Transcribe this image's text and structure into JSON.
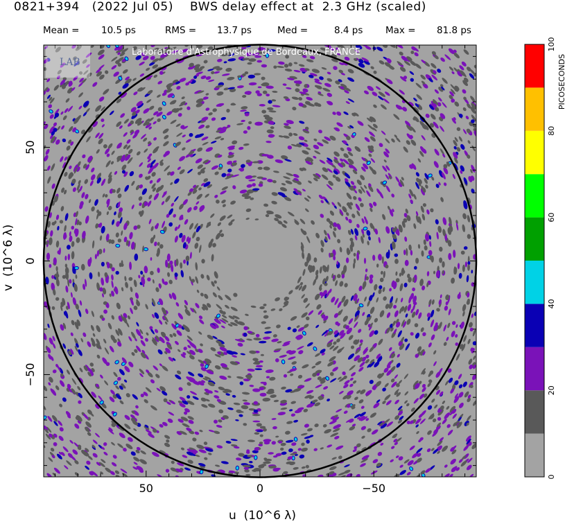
{
  "header": {
    "title": "0821+394   (2022 Jul 05)    BWS delay effect at  2.3 GHz (scaled)",
    "stats": [
      {
        "label": "Mean =",
        "value": "10.5 ps"
      },
      {
        "label": "RMS =",
        "value": "13.7 ps"
      },
      {
        "label": "Med =",
        "value": "8.4 ps"
      },
      {
        "label": "Max =",
        "value": "81.8 ps"
      }
    ]
  },
  "watermark": {
    "text": "Laboratoire d'Astrophysique de Bordeaux, FRANCE",
    "logo_text": "LAB"
  },
  "colors": {
    "background_fill": "#a3a3a3",
    "circle": "#000000",
    "levels": [
      "#a3a3a3",
      "#595959",
      "#7a12b8",
      "#0a00b4",
      "#00d2e6",
      "#00a000",
      "#00ff00",
      "#ffff00",
      "#ffc000",
      "#ff0000"
    ]
  },
  "chart_data": {
    "type": "heatmap",
    "title": "0821+394   (2022 Jul 05)    BWS delay effect at  2.3 GHz (scaled)",
    "xlabel": "u  (10^6 λ)",
    "ylabel": "v  (10^6 λ)",
    "xlim": [
      95,
      -95
    ],
    "ylim": [
      -95,
      95
    ],
    "x_ticks": [
      {
        "value": 50,
        "label": "50"
      },
      {
        "value": 0,
        "label": "0"
      },
      {
        "value": -50,
        "label": "−50"
      }
    ],
    "y_ticks": [
      {
        "value": 50,
        "label": "50"
      },
      {
        "value": 0,
        "label": "0"
      },
      {
        "value": -50,
        "label": "−50"
      }
    ],
    "circle_radius": 95,
    "colorbar": {
      "label": "PICOSECONDS",
      "range": [
        0,
        100
      ],
      "step": 10,
      "tick_labels": [
        "0",
        "20",
        "40",
        "60",
        "80",
        "100"
      ]
    },
    "statistics": {
      "mean_ps": 10.5,
      "rms_ps": 13.7,
      "median_ps": 8.4,
      "max_ps": 81.8
    }
  }
}
